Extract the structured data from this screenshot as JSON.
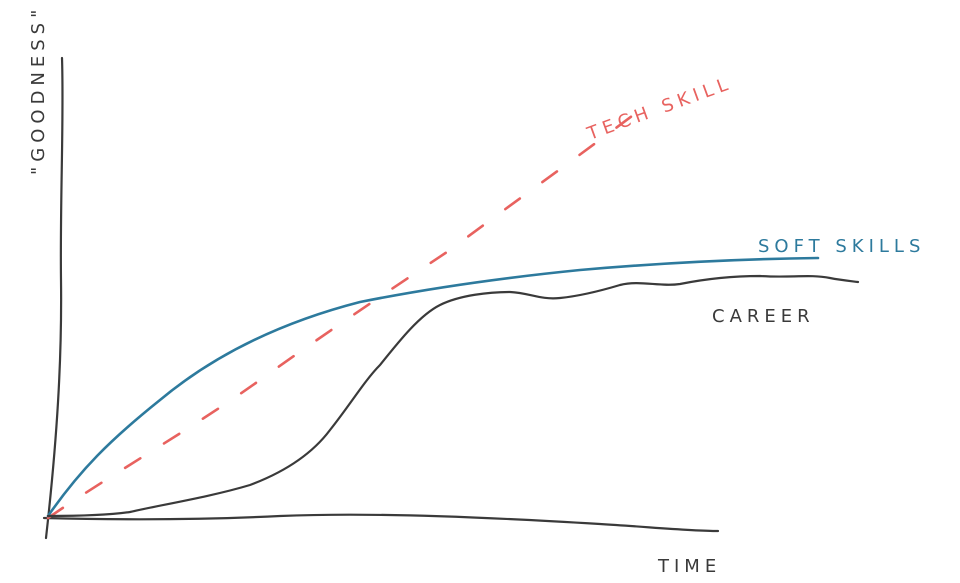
{
  "labels": {
    "y_axis": "\"GOODNESS\"",
    "x_axis": "TIME",
    "tech_skill": "TECH SKILL",
    "soft_skills": "SOFT SKILLS",
    "career": "CAREER"
  },
  "colors": {
    "background": "#ffffff",
    "axis": "#3a3a3a",
    "tech_skill": "#e8625f",
    "soft_skills": "#2d7a9d",
    "career": "#3a3a3a"
  },
  "line_styles": {
    "tech_skill": "dashed",
    "soft_skills": "solid",
    "career": "solid"
  }
}
